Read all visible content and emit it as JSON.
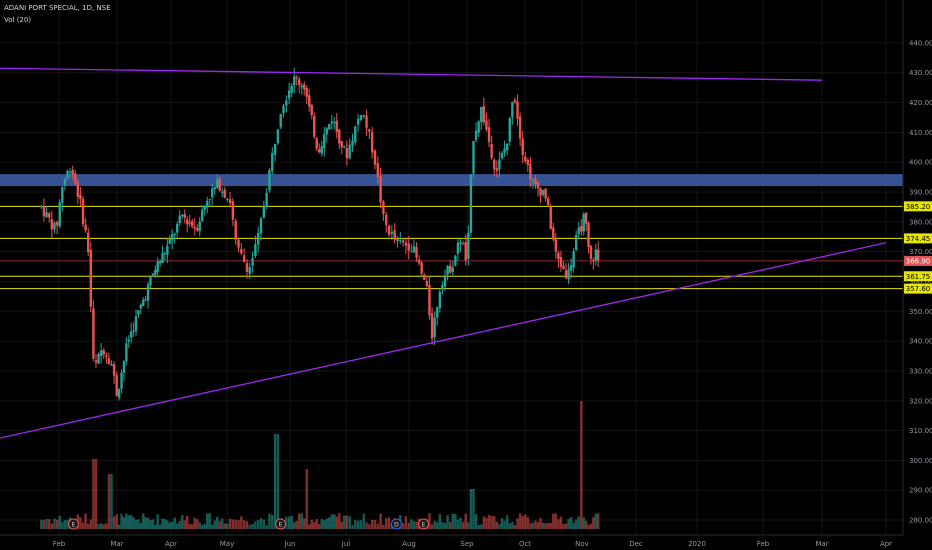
{
  "header": {
    "title": "ADANI PORT SPECIAL, 1D, NSE",
    "volume_label": "Vol (20)"
  },
  "colors": {
    "up": "#26a69a",
    "down": "#ef5350",
    "trend": "#9c27f0",
    "level": "#e5e500",
    "zone": "#3b5ba5",
    "grid": "#151515",
    "axis_text": "#9598a1"
  },
  "chart_data": {
    "type": "candlestick",
    "title": "ADANI PORT SPECIAL, 1D, NSE",
    "ylim": [
      277,
      446
    ],
    "y_ticks": [
      280,
      290,
      300,
      310,
      320,
      330,
      340,
      350,
      360,
      370,
      380,
      390,
      400,
      410,
      420,
      430,
      440
    ],
    "x_ticks": [
      "Feb",
      "Mar",
      "Apr",
      "May",
      "Jun",
      "Jul",
      "Aug",
      "Sep",
      "Oct",
      "Nov",
      "Dec",
      "2020",
      "Feb",
      "Mar",
      "Apr"
    ],
    "event_markers": [
      {
        "tick": "Feb",
        "label": "E",
        "offset": 0.25
      },
      {
        "tick": "May",
        "label": "E",
        "offset": 0.85
      },
      {
        "tick": "Aug",
        "label": "D",
        "offset": -0.2
      },
      {
        "tick": "Aug",
        "label": "E",
        "offset": 0.25
      }
    ],
    "horizontal_levels": [
      {
        "value": 385.2,
        "label": "385.20"
      },
      {
        "value": 374.45,
        "label": "374.45"
      },
      {
        "value": 361.75,
        "label": "361.75"
      },
      {
        "value": 357.6,
        "label": "357.60"
      }
    ],
    "current_price": {
      "value": 366.9,
      "label": "366.90"
    },
    "resistance_zone": [
      392,
      396
    ],
    "trendlines": [
      {
        "from": {
          "tick": "Jan",
          "value": 431.5
        },
        "to": {
          "tick": "Mar",
          "value": 427.5
        }
      },
      {
        "from": {
          "tick": "Jan",
          "value": 307.5
        },
        "to": {
          "tick": "Apr",
          "value": 373
        }
      }
    ],
    "price_path": [
      {
        "t": -0.3,
        "p": 385
      },
      {
        "t": -0.05,
        "p": 377
      },
      {
        "t": 0.05,
        "p": 392
      },
      {
        "t": 0.2,
        "p": 399
      },
      {
        "t": 0.35,
        "p": 388
      },
      {
        "t": 0.5,
        "p": 372
      },
      {
        "t": 0.6,
        "p": 330
      },
      {
        "t": 0.75,
        "p": 338
      },
      {
        "t": 0.9,
        "p": 333
      },
      {
        "t": 1.0,
        "p": 322
      },
      {
        "t": 1.2,
        "p": 340
      },
      {
        "t": 1.45,
        "p": 352
      },
      {
        "t": 1.7,
        "p": 364
      },
      {
        "t": 1.95,
        "p": 372
      },
      {
        "t": 2.2,
        "p": 382
      },
      {
        "t": 2.45,
        "p": 378
      },
      {
        "t": 2.65,
        "p": 388
      },
      {
        "t": 2.85,
        "p": 393
      },
      {
        "t": 3.05,
        "p": 387
      },
      {
        "t": 3.15,
        "p": 371
      },
      {
        "t": 3.35,
        "p": 364
      },
      {
        "t": 3.5,
        "p": 375
      },
      {
        "t": 3.65,
        "p": 394
      },
      {
        "t": 3.85,
        "p": 418
      },
      {
        "t": 4.05,
        "p": 428
      },
      {
        "t": 4.25,
        "p": 426
      },
      {
        "t": 4.5,
        "p": 404
      },
      {
        "t": 4.75,
        "p": 415
      },
      {
        "t": 5.0,
        "p": 402
      },
      {
        "t": 5.25,
        "p": 418
      },
      {
        "t": 5.45,
        "p": 402
      },
      {
        "t": 5.6,
        "p": 380
      },
      {
        "t": 5.8,
        "p": 373
      },
      {
        "t": 6.05,
        "p": 372
      },
      {
        "t": 6.3,
        "p": 358
      },
      {
        "t": 6.4,
        "p": 342
      },
      {
        "t": 6.55,
        "p": 360
      },
      {
        "t": 6.75,
        "p": 366
      },
      {
        "t": 6.9,
        "p": 375
      },
      {
        "t": 7.0,
        "p": 365
      },
      {
        "t": 7.1,
        "p": 408
      },
      {
        "t": 7.25,
        "p": 418
      },
      {
        "t": 7.5,
        "p": 397
      },
      {
        "t": 7.7,
        "p": 407
      },
      {
        "t": 7.8,
        "p": 425
      },
      {
        "t": 7.95,
        "p": 405
      },
      {
        "t": 8.15,
        "p": 392
      },
      {
        "t": 8.35,
        "p": 390
      },
      {
        "t": 8.55,
        "p": 368
      },
      {
        "t": 8.75,
        "p": 362
      },
      {
        "t": 8.9,
        "p": 374
      },
      {
        "t": 9.05,
        "p": 382
      },
      {
        "t": 9.15,
        "p": 366
      },
      {
        "t": 9.25,
        "p": 370
      },
      {
        "t": 9.3,
        "p": 366.9
      }
    ]
  }
}
